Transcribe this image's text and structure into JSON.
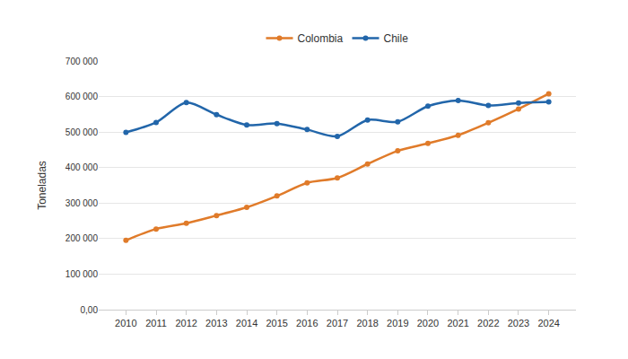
{
  "chart_data": {
    "type": "line",
    "y_label": "Toneladas",
    "categories": [
      "2010",
      "2011",
      "2012",
      "2013",
      "2014",
      "2015",
      "2016",
      "2017",
      "2018",
      "2019",
      "2020",
      "2021",
      "2022",
      "2023",
      "2024"
    ],
    "series": [
      {
        "name": "Colombia",
        "color": "#e07b2a",
        "values": [
          195000,
          227000,
          243000,
          265000,
          288000,
          320000,
          357000,
          371000,
          410000,
          447000,
          468000,
          491000,
          526000,
          565000,
          608000
        ]
      },
      {
        "name": "Chile",
        "color": "#2266aa",
        "values": [
          499000,
          527000,
          583000,
          549000,
          520000,
          524000,
          507000,
          488000,
          534000,
          529000,
          573000,
          589000,
          575000,
          582000,
          585000
        ]
      }
    ],
    "ylim": [
      0,
      700000
    ],
    "yticks": [
      {
        "value": 0,
        "label": "0,00"
      },
      {
        "value": 100000,
        "label": "100 000"
      },
      {
        "value": 200000,
        "label": "200 000"
      },
      {
        "value": 300000,
        "label": "300 000"
      },
      {
        "value": 400000,
        "label": "400 000"
      },
      {
        "value": 500000,
        "label": "500 000"
      },
      {
        "value": 600000,
        "label": "600 000"
      },
      {
        "value": 700000,
        "label": "700 000"
      }
    ],
    "grid": true,
    "legend": "top",
    "marker": "circle",
    "line_style": "smooth"
  }
}
